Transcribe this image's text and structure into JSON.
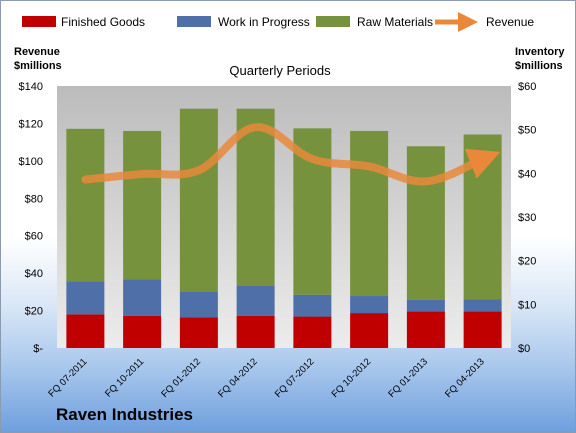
{
  "chart_data": {
    "type": "bar",
    "stacked": true,
    "title": "Quarterly Periods",
    "company": "Raven Industries",
    "categories": [
      "FQ 07-2011",
      "FQ 10-2011",
      "FQ 01-2012",
      "FQ 04-2012",
      "FQ 07-2012",
      "FQ 10-2012",
      "FQ 01-2013",
      "FQ 04-2013"
    ],
    "series": [
      {
        "name": "Finished Goods",
        "axis": "right",
        "color": "#c00000",
        "values": [
          7.7,
          7.4,
          7.0,
          7.4,
          7.2,
          8.0,
          8.4,
          8.4
        ]
      },
      {
        "name": "Work in Progress",
        "axis": "right",
        "color": "#4f6fa8",
        "values": [
          7.6,
          8.3,
          6.0,
          6.8,
          5.0,
          3.9,
          2.6,
          2.7
        ]
      },
      {
        "name": "Raw Materials",
        "axis": "right",
        "color": "#76923c",
        "values": [
          34.9,
          34.0,
          41.8,
          40.6,
          38.1,
          37.8,
          35.2,
          37.8
        ]
      },
      {
        "name": "Revenue",
        "axis": "left",
        "type": "line",
        "color": "#e9883a",
        "values": [
          90,
          93,
          95,
          118,
          101,
          97,
          89,
          101
        ]
      }
    ],
    "left_axis": {
      "label": "Revenue\n$millions",
      "ylim": [
        0,
        140
      ],
      "ticks": [
        "$-",
        "$20",
        "$40",
        "$60",
        "$80",
        "$100",
        "$120",
        "$140"
      ]
    },
    "right_axis": {
      "label": "Inventory\n$millions",
      "ylim": [
        0,
        60
      ],
      "ticks": [
        "$0",
        "$10",
        "$20",
        "$30",
        "$40",
        "$50",
        "$60"
      ]
    },
    "grid": false,
    "legend": "top"
  },
  "labels": {
    "left_axis_line1": "Revenue",
    "left_axis_line2": "$millions",
    "right_axis_line1": "Inventory",
    "right_axis_line2": "$millions"
  }
}
